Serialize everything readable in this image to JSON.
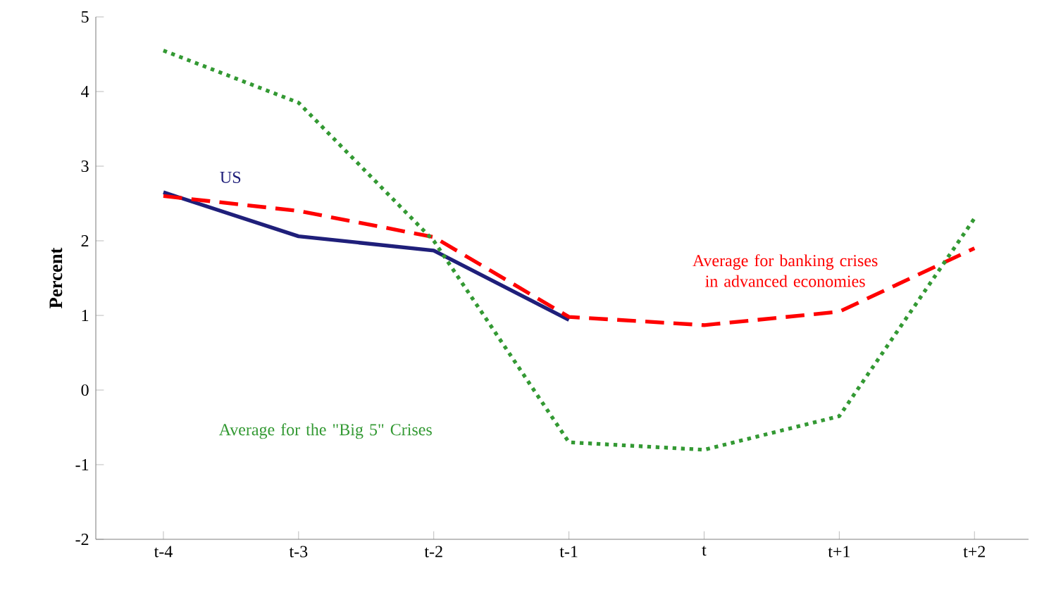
{
  "chart_data": {
    "type": "line",
    "ylabel": "Percent",
    "categories": [
      "t-4",
      "t-3",
      "t-2",
      "t-1",
      "t",
      "t+1",
      "t+2"
    ],
    "ylim": [
      -2,
      5
    ],
    "yticks": [
      -2,
      -1,
      0,
      1,
      2,
      3,
      4,
      5
    ],
    "legend": false,
    "grid": false,
    "series": [
      {
        "name": "US",
        "color": "#1f1f7a",
        "line_style": "solid",
        "values": [
          2.65,
          2.06,
          1.87,
          0.94,
          null,
          null,
          null
        ]
      },
      {
        "name": "Average for banking crises in advanced economies",
        "color": "#ff0000",
        "line_style": "dashed",
        "values": [
          2.6,
          2.4,
          2.05,
          0.98,
          0.87,
          1.05,
          1.9
        ]
      },
      {
        "name": "Average for the \"Big 5\" Crises",
        "color": "#339933",
        "line_style": "dotted",
        "values": [
          4.55,
          3.85,
          2.0,
          -0.7,
          -0.8,
          -0.35,
          2.3
        ]
      }
    ]
  }
}
